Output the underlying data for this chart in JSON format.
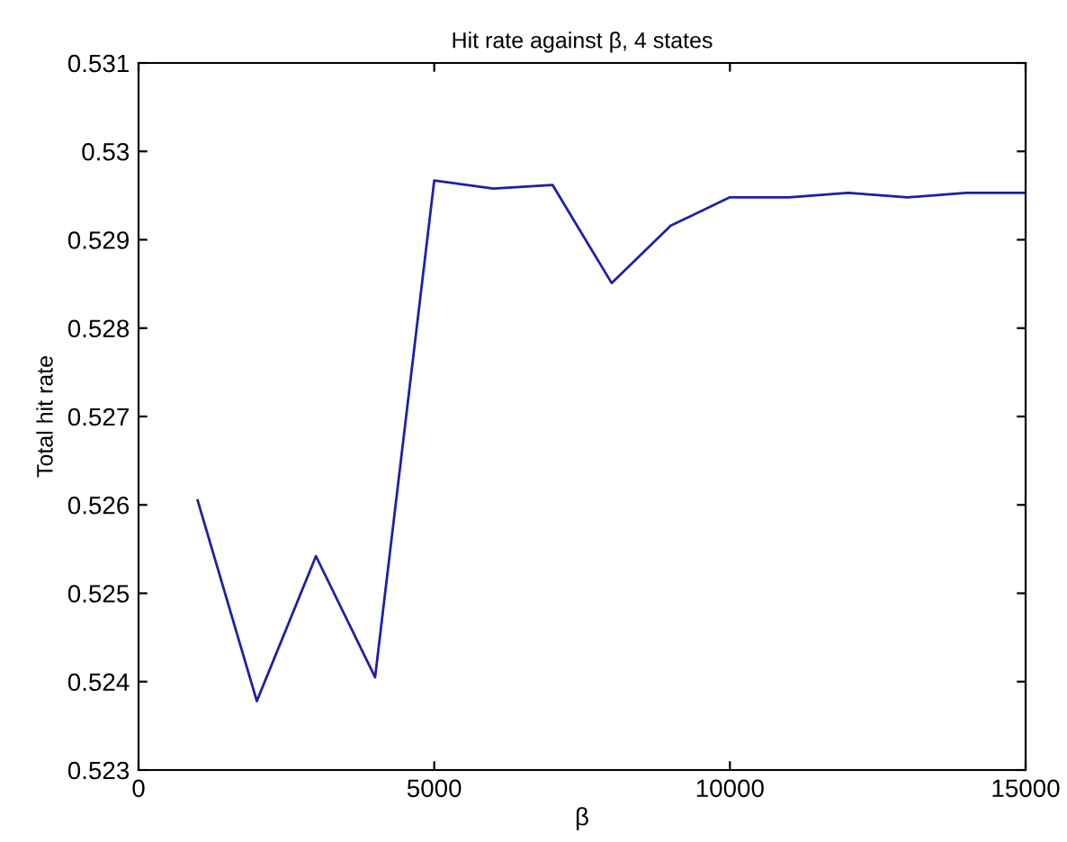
{
  "chart_data": {
    "type": "line",
    "title": "Hit rate against β, 4 states",
    "xlabel": "β",
    "ylabel": "Total hit rate",
    "x": [
      1000,
      2000,
      3000,
      4000,
      5000,
      6000,
      7000,
      8000,
      9000,
      10000,
      11000,
      12000,
      13000,
      14000,
      15000
    ],
    "series": [
      {
        "color": "#1f1fa8",
        "values": [
          0.52605,
          0.52378,
          0.52542,
          0.52405,
          0.52967,
          0.52958,
          0.52962,
          0.52851,
          0.52916,
          0.52948,
          0.52948,
          0.52953,
          0.52948,
          0.52953,
          0.52953
        ]
      }
    ],
    "xlim": [
      0,
      15000
    ],
    "xticks": [
      0,
      5000,
      10000,
      15000
    ],
    "ylim": [
      0.523,
      0.531
    ],
    "yticks": [
      0.523,
      0.524,
      0.525,
      0.526,
      0.527,
      0.528,
      0.529,
      0.53,
      0.531
    ],
    "grid": false,
    "legend": false
  }
}
